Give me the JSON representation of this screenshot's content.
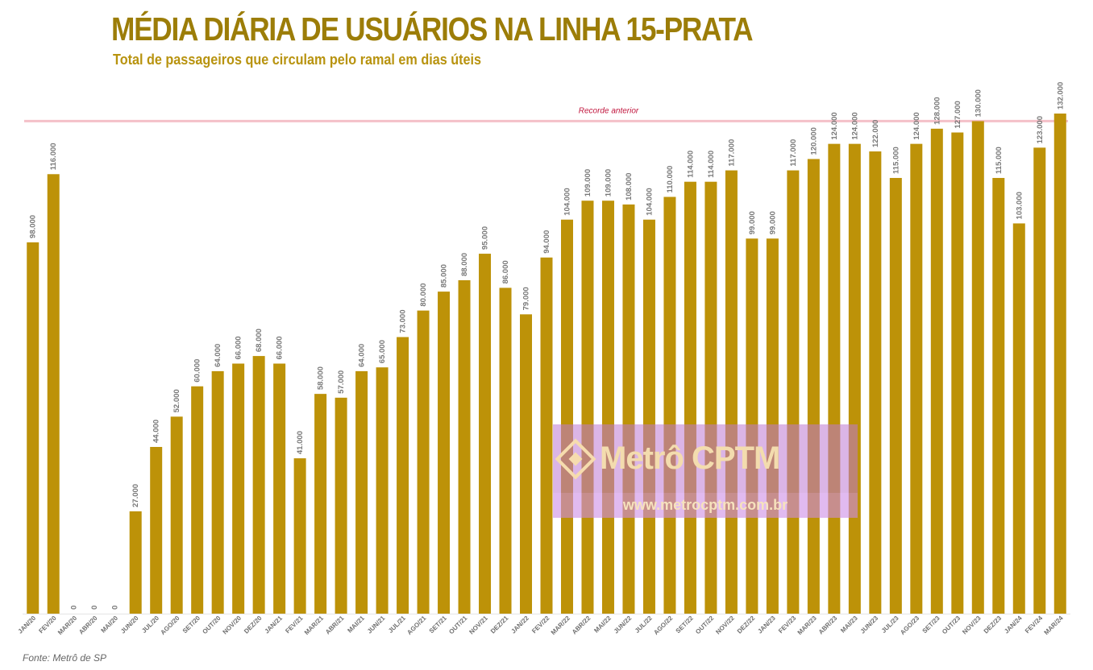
{
  "header": {
    "title": "MÉDIA DIÁRIA DE USUÁRIOS NA LINHA 15-PRATA",
    "subtitle": "Total de passageiros que circulam pelo ramal em dias úteis"
  },
  "footer": {
    "source": "Fonte: Metrô de SP"
  },
  "watermark": {
    "name": "Metrô CPTM",
    "url": "www.metrocptm.com.br"
  },
  "colors": {
    "bar": "#bd9208",
    "record_line": "#f4c0c8",
    "record_label": "#c0143c",
    "label": "#777777"
  },
  "chart_data": {
    "type": "bar",
    "title": "MÉDIA DIÁRIA DE USUÁRIOS NA LINHA 15-PRATA",
    "subtitle": "Total de passageiros que circulam pelo ramal em dias úteis",
    "xlabel": "",
    "ylabel": "",
    "ylim": [
      0,
      132000
    ],
    "grid": false,
    "legend": "none",
    "categories": [
      "JAN/20",
      "FEV/20",
      "MAR/20",
      "ABR/20",
      "MAI/20",
      "JUN/20",
      "JUL/20",
      "AGO/20",
      "SET/20",
      "OUT/20",
      "NOV/20",
      "DEZ/20",
      "JAN/21",
      "FEV/21",
      "MAR/21",
      "ABR/21",
      "MAI/21",
      "JUN/21",
      "JUL/21",
      "AGO/21",
      "SET/21",
      "OUT/21",
      "NOV/21",
      "DEZ/21",
      "JAN/22",
      "FEV/22",
      "MAR/22",
      "ABR/22",
      "MAI/22",
      "JUN/22",
      "JUL/22",
      "AGO/22",
      "SET/22",
      "OUT/22",
      "NOV/22",
      "DEZ/22",
      "JAN/23",
      "FEV/23",
      "MAR/23",
      "ABR/23",
      "MAI/23",
      "JUN/23",
      "JUL/23",
      "AGO/23",
      "SET/23",
      "OUT/23",
      "NOV/23",
      "DEZ/23",
      "JAN/24",
      "FEV/24",
      "MAR/24"
    ],
    "values": [
      98000,
      116000,
      0,
      0,
      0,
      27000,
      44000,
      52000,
      60000,
      64000,
      66000,
      68000,
      66000,
      41000,
      58000,
      57000,
      64000,
      65000,
      73000,
      80000,
      85000,
      88000,
      95000,
      86000,
      79000,
      94000,
      104000,
      109000,
      109000,
      108000,
      104000,
      110000,
      114000,
      114000,
      117000,
      99000,
      99000,
      117000,
      120000,
      124000,
      124000,
      122000,
      115000,
      124000,
      128000,
      127000,
      130000,
      115000,
      103000,
      123000,
      132000
    ],
    "data_labels": [
      "98.000",
      "116.000",
      "0",
      "0",
      "0",
      "27.000",
      "44.000",
      "52.000",
      "60.000",
      "64.000",
      "66.000",
      "68.000",
      "66.000",
      "41.000",
      "58.000",
      "57.000",
      "64.000",
      "65.000",
      "73.000",
      "80.000",
      "85.000",
      "88.000",
      "95.000",
      "86.000",
      "79.000",
      "94.000",
      "104.000",
      "109.000",
      "109.000",
      "108.000",
      "104.000",
      "110.000",
      "114.000",
      "114.000",
      "117.000",
      "99.000",
      "99.000",
      "117.000",
      "120.000",
      "124.000",
      "124.000",
      "122.000",
      "115.000",
      "124.000",
      "128.000",
      "127.000",
      "130.000",
      "115.000",
      "103.000",
      "123.000",
      "132.000"
    ],
    "reference_line": {
      "value": 130000,
      "label": "Recorde anterior"
    }
  }
}
